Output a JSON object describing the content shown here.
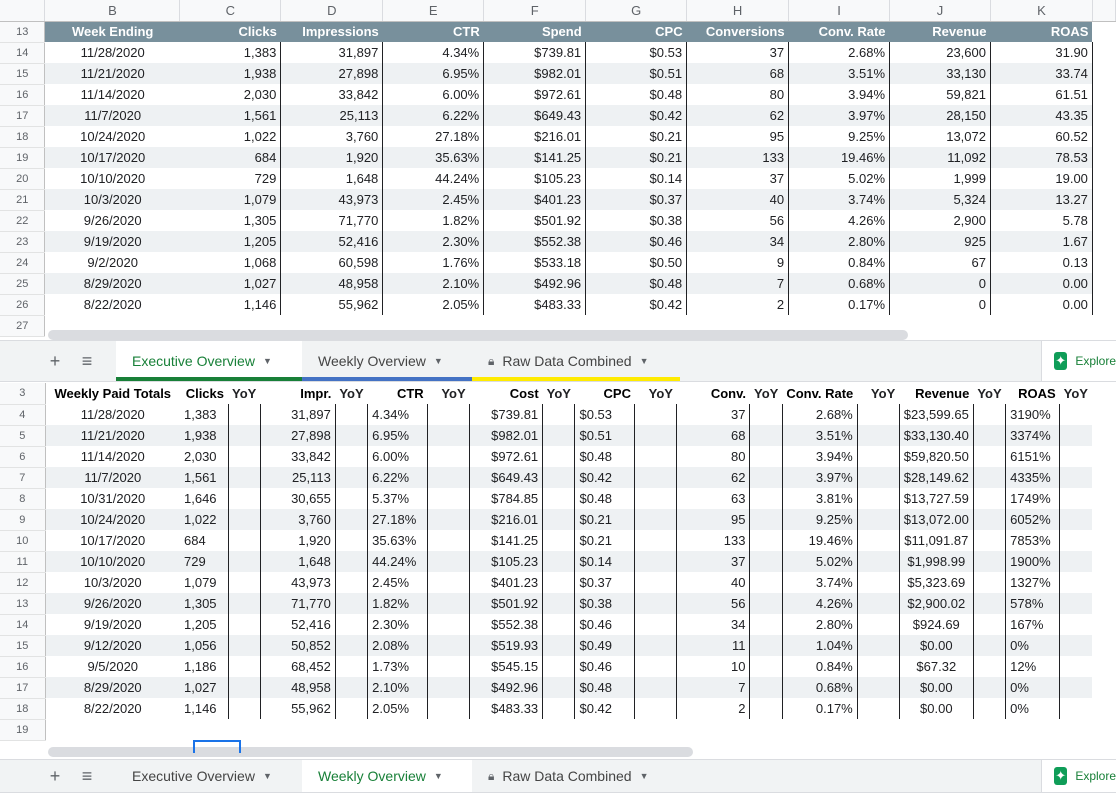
{
  "colors": {
    "header_dark": "#78909c",
    "stripe": "#eef1f3",
    "tab_active_text": "#188038",
    "tab_underline_green": "#188038",
    "tab_underline_blue": "#4472c4",
    "tab_underline_yellow": "#ffeb00"
  },
  "top_pane": {
    "column_letters": [
      "B",
      "C",
      "D",
      "E",
      "F",
      "G",
      "H",
      "I",
      "J",
      "K"
    ],
    "row_numbers": [
      "13",
      "14",
      "15",
      "16",
      "17",
      "18",
      "19",
      "20",
      "21",
      "22",
      "23",
      "24",
      "25",
      "26",
      "27"
    ],
    "headers": [
      "Week Ending",
      "Clicks",
      "Impressions",
      "CTR",
      "Spend",
      "CPC",
      "Conversions",
      "Conv. Rate",
      "Revenue",
      "ROAS"
    ],
    "rows": [
      [
        "11/28/2020",
        "1,383",
        "31,897",
        "4.34%",
        "$739.81",
        "$0.53",
        "37",
        "2.68%",
        "23,600",
        "31.90"
      ],
      [
        "11/21/2020",
        "1,938",
        "27,898",
        "6.95%",
        "$982.01",
        "$0.51",
        "68",
        "3.51%",
        "33,130",
        "33.74"
      ],
      [
        "11/14/2020",
        "2,030",
        "33,842",
        "6.00%",
        "$972.61",
        "$0.48",
        "80",
        "3.94%",
        "59,821",
        "61.51"
      ],
      [
        "11/7/2020",
        "1,561",
        "25,113",
        "6.22%",
        "$649.43",
        "$0.42",
        "62",
        "3.97%",
        "28,150",
        "43.35"
      ],
      [
        "10/24/2020",
        "1,022",
        "3,760",
        "27.18%",
        "$216.01",
        "$0.21",
        "95",
        "9.25%",
        "13,072",
        "60.52"
      ],
      [
        "10/17/2020",
        "684",
        "1,920",
        "35.63%",
        "$141.25",
        "$0.21",
        "133",
        "19.46%",
        "11,092",
        "78.53"
      ],
      [
        "10/10/2020",
        "729",
        "1,648",
        "44.24%",
        "$105.23",
        "$0.14",
        "37",
        "5.02%",
        "1,999",
        "19.00"
      ],
      [
        "10/3/2020",
        "1,079",
        "43,973",
        "2.45%",
        "$401.23",
        "$0.37",
        "40",
        "3.74%",
        "5,324",
        "13.27"
      ],
      [
        "9/26/2020",
        "1,305",
        "71,770",
        "1.82%",
        "$501.92",
        "$0.38",
        "56",
        "4.26%",
        "2,900",
        "5.78"
      ],
      [
        "9/19/2020",
        "1,205",
        "52,416",
        "2.30%",
        "$552.38",
        "$0.46",
        "34",
        "2.80%",
        "925",
        "1.67"
      ],
      [
        "9/2/2020",
        "1,068",
        "60,598",
        "1.76%",
        "$533.18",
        "$0.50",
        "9",
        "0.84%",
        "67",
        "0.13"
      ],
      [
        "8/29/2020",
        "1,027",
        "48,958",
        "2.10%",
        "$492.96",
        "$0.48",
        "7",
        "0.68%",
        "0",
        "0.00"
      ],
      [
        "8/22/2020",
        "1,146",
        "55,962",
        "2.05%",
        "$483.33",
        "$0.42",
        "2",
        "0.17%",
        "0",
        "0.00"
      ]
    ]
  },
  "top_tabs": {
    "add_sheet": "+",
    "all_sheets": "≡",
    "tabs": [
      "Executive Overview",
      "Weekly Overview",
      "Raw Data Combined"
    ],
    "active": 0,
    "explore": "Explore"
  },
  "bottom_pane": {
    "row_numbers": [
      "3",
      "4",
      "5",
      "6",
      "7",
      "8",
      "9",
      "10",
      "11",
      "12",
      "13",
      "14",
      "15",
      "16",
      "17",
      "18",
      "19"
    ],
    "headers": [
      "Weekly Paid Totals",
      "Clicks",
      "YoY",
      "Impr.",
      "YoY",
      "CTR",
      "YoY",
      "Cost",
      "YoY",
      "CPC",
      "YoY",
      "Conv.",
      "YoY",
      "Conv. Rate",
      "YoY",
      "Revenue",
      "YoY",
      "ROAS",
      "YoY"
    ],
    "rows": [
      [
        "11/28/2020",
        "1,383",
        "31,897",
        "4.34%",
        "$739.81",
        "$0.53",
        "37",
        "2.68%",
        "$23,599.65",
        "3190%"
      ],
      [
        "11/21/2020",
        "1,938",
        "27,898",
        "6.95%",
        "$982.01",
        "$0.51",
        "68",
        "3.51%",
        "$33,130.40",
        "3374%"
      ],
      [
        "11/14/2020",
        "2,030",
        "33,842",
        "6.00%",
        "$972.61",
        "$0.48",
        "80",
        "3.94%",
        "$59,820.50",
        "6151%"
      ],
      [
        "11/7/2020",
        "1,561",
        "25,113",
        "6.22%",
        "$649.43",
        "$0.42",
        "62",
        "3.97%",
        "$28,149.62",
        "4335%"
      ],
      [
        "10/31/2020",
        "1,646",
        "30,655",
        "5.37%",
        "$784.85",
        "$0.48",
        "63",
        "3.81%",
        "$13,727.59",
        "1749%"
      ],
      [
        "10/24/2020",
        "1,022",
        "3,760",
        "27.18%",
        "$216.01",
        "$0.21",
        "95",
        "9.25%",
        "$13,072.00",
        "6052%"
      ],
      [
        "10/17/2020",
        "684",
        "1,920",
        "35.63%",
        "$141.25",
        "$0.21",
        "133",
        "19.46%",
        "$11,091.87",
        "7853%"
      ],
      [
        "10/10/2020",
        "729",
        "1,648",
        "44.24%",
        "$105.23",
        "$0.14",
        "37",
        "5.02%",
        "$1,998.99",
        "1900%"
      ],
      [
        "10/3/2020",
        "1,079",
        "43,973",
        "2.45%",
        "$401.23",
        "$0.37",
        "40",
        "3.74%",
        "$5,323.69",
        "1327%"
      ],
      [
        "9/26/2020",
        "1,305",
        "71,770",
        "1.82%",
        "$501.92",
        "$0.38",
        "56",
        "4.26%",
        "$2,900.02",
        "578%"
      ],
      [
        "9/19/2020",
        "1,205",
        "52,416",
        "2.30%",
        "$552.38",
        "$0.46",
        "34",
        "2.80%",
        "$924.69",
        "167%"
      ],
      [
        "9/12/2020",
        "1,056",
        "50,852",
        "2.08%",
        "$519.93",
        "$0.49",
        "11",
        "1.04%",
        "$0.00",
        "0%"
      ],
      [
        "9/5/2020",
        "1,186",
        "68,452",
        "1.73%",
        "$545.15",
        "$0.46",
        "10",
        "0.84%",
        "$67.32",
        "12%"
      ],
      [
        "8/29/2020",
        "1,027",
        "48,958",
        "2.10%",
        "$492.96",
        "$0.48",
        "7",
        "0.68%",
        "$0.00",
        "0%"
      ],
      [
        "8/22/2020",
        "1,146",
        "55,962",
        "2.05%",
        "$483.33",
        "$0.42",
        "2",
        "0.17%",
        "$0.00",
        "0%"
      ]
    ]
  },
  "bottom_tabs": {
    "add_sheet": "+",
    "all_sheets": "≡",
    "tabs": [
      "Executive Overview",
      "Weekly Overview",
      "Raw Data Combined"
    ],
    "active": 1,
    "explore": "Explore"
  }
}
